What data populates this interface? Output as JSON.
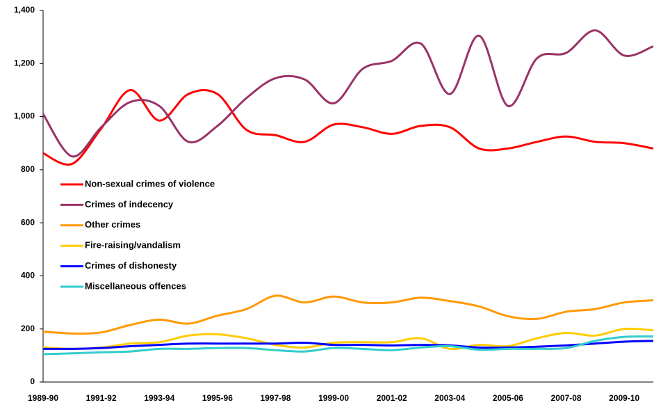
{
  "chart_data": {
    "type": "line",
    "categories": [
      "1989-90",
      null,
      "1991-92",
      null,
      "1993-94",
      null,
      "1995-96",
      null,
      "1997-98",
      null,
      "1999-00",
      null,
      "2001-02",
      null,
      "2003-04",
      null,
      "2005-06",
      null,
      "2007-08",
      null,
      "2009-10",
      null
    ],
    "series": [
      {
        "name": "Non-sexual crimes of violence",
        "color": "#ff0000",
        "values": [
          862,
          822,
          955,
          1100,
          985,
          1085,
          1085,
          950,
          930,
          905,
          970,
          960,
          935,
          965,
          960,
          880,
          880,
          905,
          925,
          905,
          900,
          880
        ]
      },
      {
        "name": "Crimes of indecency",
        "color": "#993366",
        "values": [
          1010,
          850,
          960,
          1055,
          1040,
          905,
          965,
          1070,
          1145,
          1140,
          1050,
          1180,
          1210,
          1275,
          1085,
          1305,
          1040,
          1220,
          1240,
          1325,
          1230,
          1265
        ]
      },
      {
        "name": "Other crimes",
        "color": "#ff9900",
        "values": [
          190,
          183,
          187,
          215,
          235,
          220,
          250,
          275,
          325,
          300,
          322,
          300,
          300,
          318,
          305,
          285,
          248,
          238,
          265,
          275,
          300,
          308
        ]
      },
      {
        "name": "Fire-raising/vandalism",
        "color": "#ffcc00",
        "values": [
          130,
          125,
          130,
          145,
          150,
          175,
          180,
          165,
          140,
          130,
          148,
          150,
          150,
          165,
          125,
          140,
          135,
          165,
          185,
          175,
          200,
          195
        ]
      },
      {
        "name": "Crimes of dishonesty",
        "color": "#0000ff",
        "values": [
          125,
          125,
          128,
          135,
          140,
          145,
          145,
          145,
          145,
          148,
          140,
          140,
          138,
          140,
          138,
          130,
          130,
          133,
          138,
          145,
          152,
          155
        ]
      },
      {
        "name": "Miscellaneous offences",
        "color": "#33cccc",
        "values": [
          105,
          108,
          112,
          115,
          125,
          125,
          128,
          128,
          120,
          115,
          128,
          125,
          120,
          130,
          135,
          122,
          125,
          125,
          128,
          155,
          170,
          172
        ]
      }
    ],
    "ylim": [
      0,
      1400
    ],
    "yticks": [
      0,
      200,
      400,
      600,
      800,
      {
        "value": 1000,
        "label": "1,000"
      },
      {
        "value": 1200,
        "label": "1,200"
      },
      {
        "value": 1400,
        "label": "1,400"
      }
    ],
    "legend": "left"
  }
}
